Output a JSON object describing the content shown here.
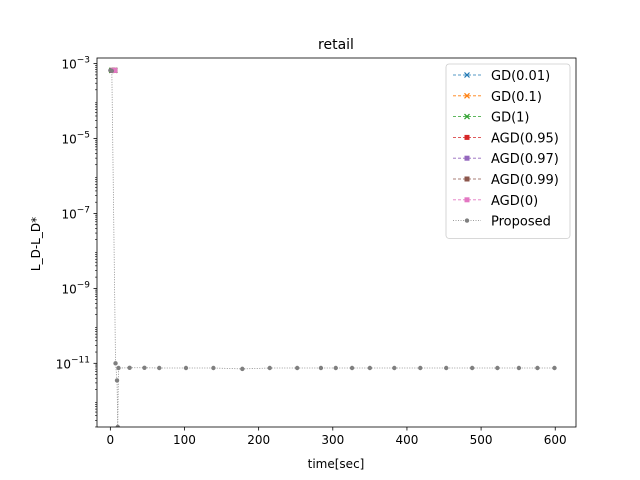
{
  "chart_data": {
    "type": "line",
    "title": "retail",
    "xlabel": "time[sec]",
    "ylabel": "L_D-L_D*",
    "xlim": [
      -18,
      628
    ],
    "xticks": [
      0,
      100,
      200,
      300,
      400,
      500,
      600
    ],
    "yscale": "log",
    "ylim_exp": [
      -12.7,
      -2.85
    ],
    "yticks_exp": [
      -3,
      -5,
      -7,
      -9,
      -11
    ],
    "ytick_labels": [
      {
        "base": "10",
        "exp": "−3"
      },
      {
        "base": "10",
        "exp": "−5"
      },
      {
        "base": "10",
        "exp": "−7"
      },
      {
        "base": "10",
        "exp": "−9"
      },
      {
        "base": "10",
        "exp": "−11"
      }
    ],
    "grid": false,
    "legend_position": "upper right",
    "series": [
      {
        "name": "GD(0.01)",
        "color": "#1f77b4",
        "marker": "x",
        "points": [
          [
            2,
            0.00066
          ],
          [
            6,
            0.00066
          ]
        ]
      },
      {
        "name": "GD(0.1)",
        "color": "#ff7f0e",
        "marker": "x",
        "points": [
          [
            2,
            0.00066
          ],
          [
            6,
            0.00066
          ]
        ]
      },
      {
        "name": "GD(1)",
        "color": "#2ca02c",
        "marker": "x",
        "points": [
          [
            2,
            0.00066
          ],
          [
            6,
            0.00066
          ]
        ]
      },
      {
        "name": "AGD(0.95)",
        "color": "#d62728",
        "marker": "s",
        "points": [
          [
            3,
            0.00066
          ],
          [
            6,
            0.00066
          ]
        ]
      },
      {
        "name": "AGD(0.97)",
        "color": "#9467bd",
        "marker": "s",
        "points": [
          [
            3,
            0.00066
          ],
          [
            6,
            0.00066
          ]
        ]
      },
      {
        "name": "AGD(0.99)",
        "color": "#8c564b",
        "marker": "s",
        "points": [
          [
            3,
            0.00066
          ],
          [
            6,
            0.00066
          ]
        ]
      },
      {
        "name": "AGD(0)",
        "color": "#e377c2",
        "marker": "s",
        "points": [
          [
            4,
            0.00066
          ],
          [
            6,
            0.00066
          ]
        ]
      },
      {
        "name": "Proposed",
        "color": "#7f7f7f",
        "marker": "o",
        "points": [
          [
            0,
            0.00066
          ],
          [
            2,
            0.00064
          ],
          [
            7,
            1e-11
          ],
          [
            9,
            3.5e-12
          ],
          [
            10,
            2e-13
          ],
          [
            11,
            7.5e-12
          ],
          [
            26,
            7.6e-12
          ],
          [
            46,
            7.6e-12
          ],
          [
            66,
            7.5e-12
          ],
          [
            102,
            7.5e-12
          ],
          [
            139,
            7.5e-12
          ],
          [
            178,
            7.1e-12
          ],
          [
            215,
            7.5e-12
          ],
          [
            252,
            7.5e-12
          ],
          [
            284,
            7.5e-12
          ],
          [
            304,
            7.5e-12
          ],
          [
            326,
            7.5e-12
          ],
          [
            350,
            7.5e-12
          ],
          [
            383,
            7.5e-12
          ],
          [
            418,
            7.5e-12
          ],
          [
            453,
            7.5e-12
          ],
          [
            488,
            7.5e-12
          ],
          [
            522,
            7.5e-12
          ],
          [
            551,
            7.5e-12
          ],
          [
            576,
            7.5e-12
          ],
          [
            599,
            7.5e-12
          ]
        ]
      }
    ]
  }
}
